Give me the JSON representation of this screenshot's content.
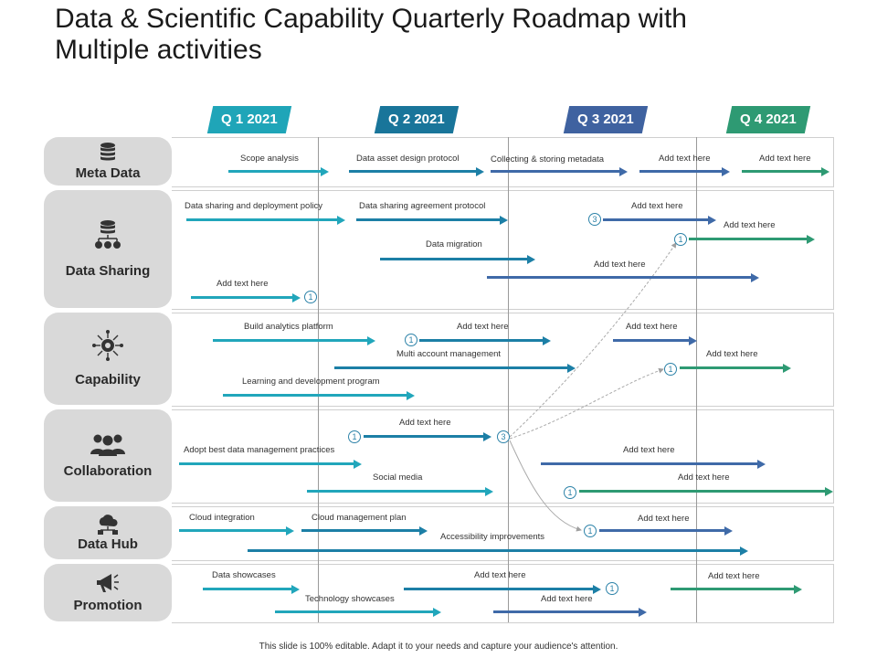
{
  "title": {
    "line1": "Data & Scientific Capability Quarterly Roadmap with",
    "line2": "Multiple activities"
  },
  "colors": {
    "q1": "#1fa5b8",
    "q2": "#19759a",
    "q3": "#3f62a0",
    "q4": "#2e9a73",
    "row_label_bg": "#d9d9d9"
  },
  "quarters": [
    "Q 1  2021",
    "Q 2  2021",
    "Q 3  2021",
    "Q 4  2021"
  ],
  "rows": [
    {
      "label": "Meta Data",
      "icon": "database-icon",
      "items": [
        "Scope analysis",
        "Data asset design protocol",
        "Collecting & storing metadata",
        "Add text here",
        "Add text here"
      ]
    },
    {
      "label": "Data Sharing",
      "icon": "database-network-icon",
      "items": [
        "Data sharing and deployment policy",
        "Data sharing agreement protocol",
        "Add text here",
        "Add text here",
        "Data migration",
        "Add text here",
        "Add text here"
      ],
      "badges": [
        "3",
        "1",
        "1"
      ]
    },
    {
      "label": "Capability",
      "icon": "gear-network-icon",
      "items": [
        "Build analytics platform",
        "Add text here",
        "Add text here",
        "Multi account management",
        "Add text here",
        "Learning and development program"
      ],
      "badges": [
        "1",
        "1"
      ]
    },
    {
      "label": "Collaboration",
      "icon": "team-icon",
      "items": [
        "Add text here",
        "Adopt best data management  practices",
        "Add text here",
        "Social media",
        "Add text here"
      ],
      "badges": [
        "1",
        "3",
        "1"
      ]
    },
    {
      "label": "Data Hub",
      "icon": "cloud-hub-icon",
      "items": [
        "Cloud integration",
        "Cloud management plan",
        "Add text here",
        "Accessibility improvements"
      ],
      "badges": [
        "1"
      ]
    },
    {
      "label": "Promotion",
      "icon": "megaphone-icon",
      "items": [
        "Data showcases",
        "Add text here",
        "Add text here",
        "Technology showcases",
        "Add text here"
      ],
      "badges": [
        "1"
      ]
    }
  ],
  "footer": "This slide is 100% editable. Adapt it to your needs and capture your audience's attention."
}
